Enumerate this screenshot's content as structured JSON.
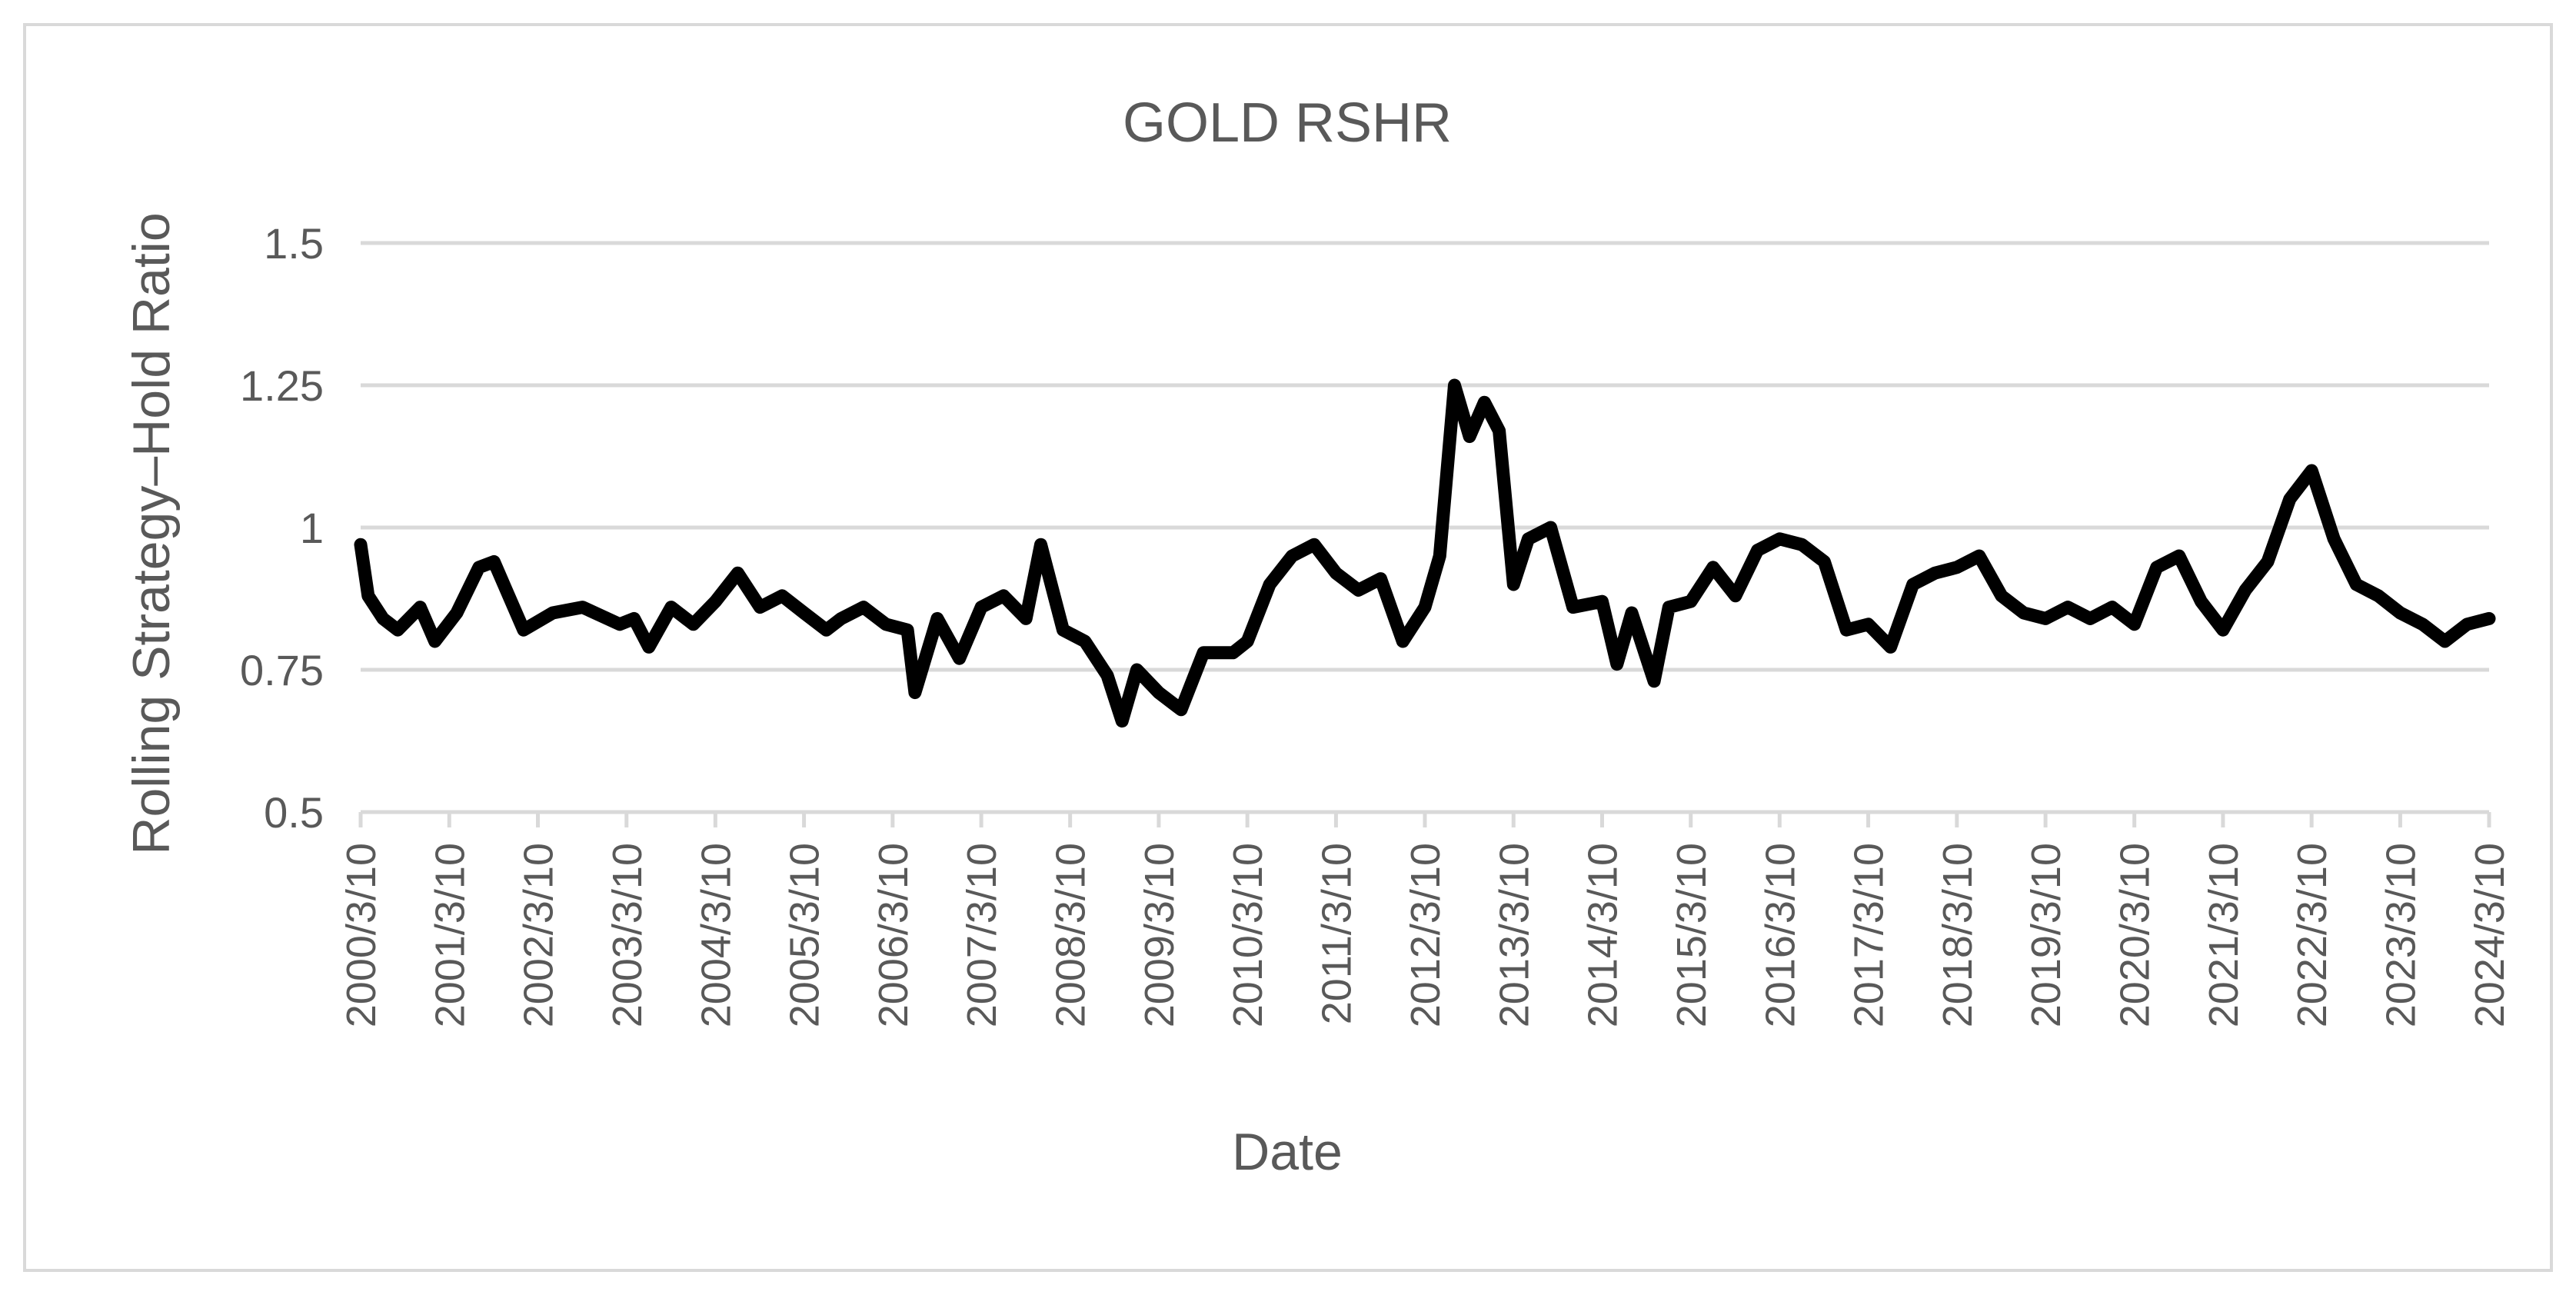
{
  "chart_data": {
    "type": "line",
    "title": "GOLD RSHR",
    "xlabel": "Date",
    "ylabel": "Rolling Strategy–Hold Ratio",
    "ylim": [
      0.5,
      1.5
    ],
    "yticks": [
      "0.5",
      "0.75",
      "1",
      "1.25",
      "1.5"
    ],
    "xticks": [
      "2000/3/10",
      "2001/3/10",
      "2002/3/10",
      "2003/3/10",
      "2004/3/10",
      "2005/3/10",
      "2006/3/10",
      "2007/3/10",
      "2008/3/10",
      "2009/3/10",
      "2010/3/10",
      "2011/3/10",
      "2012/3/10",
      "2013/3/10",
      "2014/3/10",
      "2015/3/10",
      "2016/3/10",
      "2017/3/10",
      "2018/3/10",
      "2019/3/10",
      "2020/3/10",
      "2021/3/10",
      "2022/3/10",
      "2023/3/10",
      "2024/3/10"
    ],
    "grid": true,
    "legend": "none",
    "line_color": "#000000",
    "series": [
      {
        "x": [
          "2000/03/10",
          "2000/04/10",
          "2000/06/10",
          "2000/08/10",
          "2000/11/10",
          "2001/01/10",
          "2001/04/10",
          "2001/07/10",
          "2001/09/10",
          "2001/11/10",
          "2002/01/10",
          "2002/05/10",
          "2002/09/10",
          "2003/02/10",
          "2003/04/10",
          "2003/06/10",
          "2003/09/10",
          "2003/12/10",
          "2004/03/10",
          "2004/06/10",
          "2004/09/10",
          "2004/12/10",
          "2005/03/10",
          "2005/06/10",
          "2005/08/10",
          "2005/11/10",
          "2006/02/10",
          "2006/05/10",
          "2006/06/10",
          "2006/09/10",
          "2006/12/10",
          "2007/03/10",
          "2007/06/10",
          "2007/09/10",
          "2007/11/10",
          "2008/02/10",
          "2008/05/10",
          "2008/08/10",
          "2008/10/10",
          "2008/12/10",
          "2009/03/10",
          "2009/06/10",
          "2009/09/10",
          "2010/01/10",
          "2010/03/10",
          "2010/06/10",
          "2010/09/10",
          "2010/12/10",
          "2011/03/10",
          "2011/06/10",
          "2011/09/10",
          "2011/12/10",
          "2012/03/10",
          "2012/05/10",
          "2012/07/10",
          "2012/09/10",
          "2012/11/10",
          "2013/01/10",
          "2013/03/10",
          "2013/05/10",
          "2013/08/10",
          "2013/11/10",
          "2014/03/10",
          "2014/05/10",
          "2014/07/10",
          "2014/10/10",
          "2014/12/10",
          "2015/03/10",
          "2015/06/10",
          "2015/09/10",
          "2015/12/10",
          "2016/03/10",
          "2016/06/10",
          "2016/09/10",
          "2016/12/10",
          "2017/03/10",
          "2017/06/10",
          "2017/09/10",
          "2017/12/10",
          "2018/03/10",
          "2018/06/10",
          "2018/09/10",
          "2018/12/10",
          "2019/03/10",
          "2019/06/10",
          "2019/09/10",
          "2019/12/10",
          "2020/03/10",
          "2020/06/10",
          "2020/09/10",
          "2020/12/10",
          "2021/03/10",
          "2021/06/10",
          "2021/09/10",
          "2021/12/10",
          "2022/03/10",
          "2022/06/10",
          "2022/09/10",
          "2022/12/10",
          "2023/03/10",
          "2023/06/10",
          "2023/09/10",
          "2023/12/10",
          "2024/03/10"
        ],
        "y": [
          0.97,
          0.88,
          0.84,
          0.82,
          0.86,
          0.8,
          0.85,
          0.93,
          0.94,
          0.88,
          0.82,
          0.85,
          0.86,
          0.83,
          0.84,
          0.79,
          0.86,
          0.83,
          0.87,
          0.92,
          0.86,
          0.88,
          0.85,
          0.82,
          0.84,
          0.86,
          0.83,
          0.82,
          0.71,
          0.84,
          0.77,
          0.86,
          0.88,
          0.84,
          0.97,
          0.82,
          0.8,
          0.74,
          0.66,
          0.75,
          0.71,
          0.68,
          0.78,
          0.78,
          0.8,
          0.9,
          0.95,
          0.97,
          0.92,
          0.89,
          0.91,
          0.8,
          0.86,
          0.95,
          1.25,
          1.16,
          1.22,
          1.17,
          0.9,
          0.98,
          1.0,
          0.86,
          0.87,
          0.76,
          0.85,
          0.73,
          0.86,
          0.87,
          0.93,
          0.88,
          0.96,
          0.98,
          0.97,
          0.94,
          0.82,
          0.83,
          0.79,
          0.9,
          0.92,
          0.93,
          0.95,
          0.88,
          0.85,
          0.84,
          0.86,
          0.84,
          0.86,
          0.83,
          0.93,
          0.95,
          0.87,
          0.82,
          0.89,
          0.94,
          1.05,
          1.1,
          0.98,
          0.9,
          0.88,
          0.85,
          0.83,
          0.8,
          0.83,
          0.84
        ]
      }
    ]
  }
}
